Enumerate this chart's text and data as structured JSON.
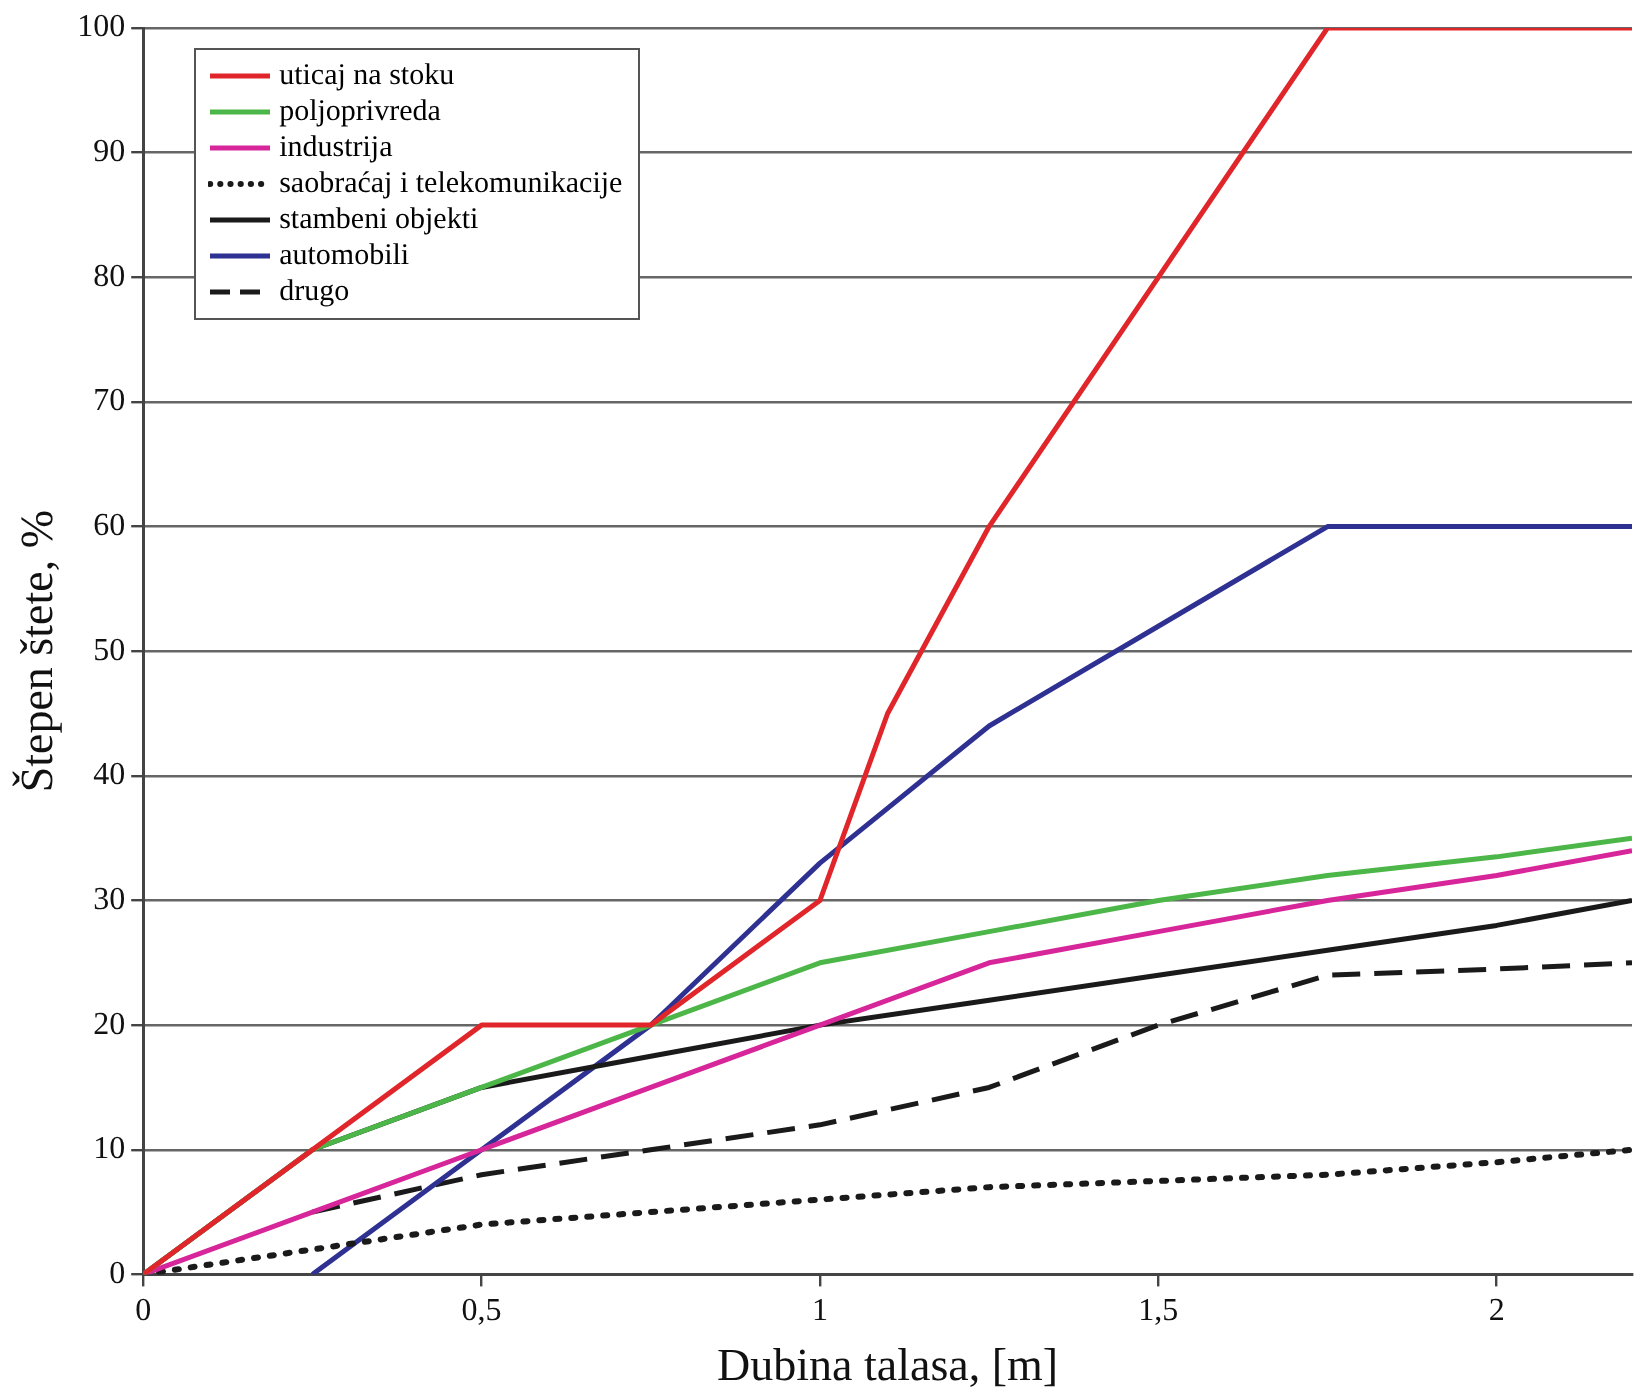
{
  "chart_data": {
    "type": "line",
    "xlabel": "Dubina talasa, [m]",
    "ylabel": "Štepen štete, %",
    "xlim": [
      0,
      2.2
    ],
    "xticks": [
      0,
      {
        "value": 0.5,
        "label": "0,5"
      },
      1,
      {
        "value": 1.5,
        "label": "1,5"
      },
      2
    ],
    "ylim": [
      0,
      100
    ],
    "yticks": [
      0,
      10,
      20,
      30,
      40,
      50,
      60,
      70,
      80,
      90,
      100
    ],
    "grid": "y",
    "legend": "top left",
    "marker": "none",
    "series": [
      {
        "name": "uticaj na stoku",
        "color": "#e0262a",
        "line_style": "solid",
        "x": [
          0,
          0.5,
          0.75,
          1,
          1.1,
          1.25,
          1.5,
          1.75,
          2.2
        ],
        "values": [
          0,
          20,
          20,
          30,
          45,
          60,
          80,
          100,
          100
        ]
      },
      {
        "name": "poljoprivreda",
        "color": "#4cb648",
        "line_style": "solid",
        "x": [
          0,
          0.25,
          0.5,
          0.75,
          1,
          1.25,
          1.5,
          1.75,
          2,
          2.2
        ],
        "values": [
          0,
          10,
          15,
          20,
          25,
          27.5,
          30,
          32,
          33.5,
          35
        ]
      },
      {
        "name": "industrija",
        "color": "#d6269a",
        "line_style": "solid",
        "x": [
          0,
          0.25,
          0.5,
          0.75,
          1,
          1.25,
          1.5,
          1.75,
          2,
          2.2
        ],
        "values": [
          0,
          5,
          10,
          15,
          20,
          25,
          27.5,
          30,
          32,
          34
        ]
      },
      {
        "name": "saobraćaj i telekomunikacije",
        "color": "#1a1a1a",
        "line_style": "dotted",
        "x": [
          0,
          0.25,
          0.5,
          0.75,
          1,
          1.25,
          1.5,
          1.75,
          2,
          2.2
        ],
        "values": [
          0,
          2,
          4,
          5,
          6,
          7,
          7.5,
          8,
          9,
          10
        ]
      },
      {
        "name": "stambeni objekti",
        "color": "#1a1a1a",
        "line_style": "solid",
        "x": [
          0,
          0.25,
          0.5,
          0.75,
          1,
          1.25,
          1.5,
          1.75,
          2,
          2.2
        ],
        "values": [
          0,
          10,
          15,
          17.5,
          20,
          22,
          24,
          26,
          28,
          30
        ]
      },
      {
        "name": "automobili",
        "color": "#2e3192",
        "line_style": "solid",
        "x": [
          0.25,
          0.5,
          0.75,
          1,
          1.25,
          1.5,
          1.75,
          2.2
        ],
        "values": [
          0,
          10,
          20,
          33,
          44,
          52,
          60,
          60
        ]
      },
      {
        "name": "drugo",
        "color": "#1a1a1a",
        "line_style": "dashed",
        "x": [
          0.25,
          0.5,
          0.75,
          1,
          1.25,
          1.5,
          1.75,
          2,
          2.2
        ],
        "values": [
          5,
          8,
          10,
          12,
          15,
          20,
          24,
          24.5,
          25
        ]
      }
    ]
  }
}
